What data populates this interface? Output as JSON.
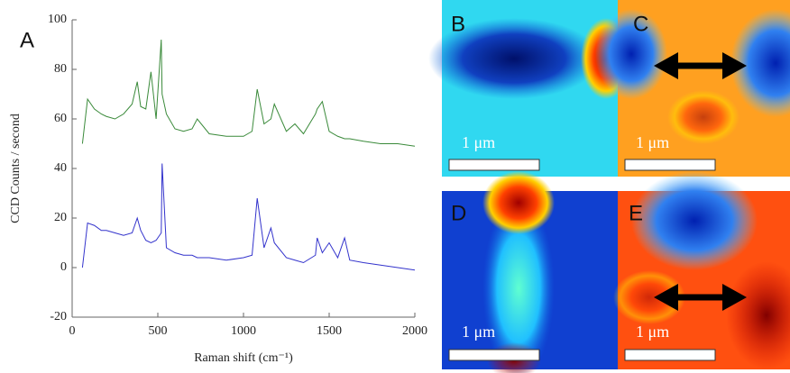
{
  "chart_data": {
    "type": "line",
    "panel_label": "A",
    "x_label": "Raman shift (cm⁻¹)",
    "y_label": "CCD Counts / second",
    "x": [
      60,
      90,
      130,
      170,
      200,
      250,
      300,
      350,
      380,
      400,
      430,
      460,
      490,
      520,
      525,
      550,
      600,
      650,
      700,
      730,
      800,
      900,
      1000,
      1050,
      1080,
      1120,
      1160,
      1180,
      1250,
      1300,
      1350,
      1420,
      1430,
      1460,
      1500,
      1550,
      1590,
      1620,
      1700,
      1800,
      1900,
      2000
    ],
    "series": [
      {
        "color": "#3a8a3a",
        "values": [
          50,
          68,
          64,
          62,
          61,
          60,
          62,
          66,
          75,
          65,
          64,
          79,
          60,
          92,
          70,
          62,
          56,
          55,
          56,
          60,
          54,
          53,
          53,
          55,
          72,
          58,
          60,
          66,
          55,
          58,
          54,
          62,
          64,
          67,
          55,
          53,
          52,
          52,
          51,
          50,
          50,
          49
        ]
      },
      {
        "color": "#3333cc",
        "values": [
          0,
          18,
          17,
          15,
          15,
          14,
          13,
          14,
          20,
          15,
          11,
          10,
          11,
          14,
          42,
          8,
          6,
          5,
          5,
          4,
          4,
          3,
          4,
          5,
          28,
          8,
          16,
          10,
          4,
          3,
          2,
          5,
          12,
          6,
          10,
          4,
          12,
          3,
          2,
          1,
          0,
          -1
        ]
      }
    ],
    "xlim": [
      0,
      2000
    ],
    "xticks": [
      0,
      500,
      1000,
      1500,
      2000
    ],
    "ylim": [
      -20,
      100
    ],
    "yticks": [
      -20,
      0,
      20,
      40,
      60,
      80,
      100
    ]
  },
  "panels": [
    {
      "label": "B",
      "scale": "1 μm"
    },
    {
      "label": "C",
      "scale": "1 μm"
    },
    {
      "label": "D",
      "scale": "1 μm"
    },
    {
      "label": "E",
      "scale": "1 μm"
    }
  ]
}
